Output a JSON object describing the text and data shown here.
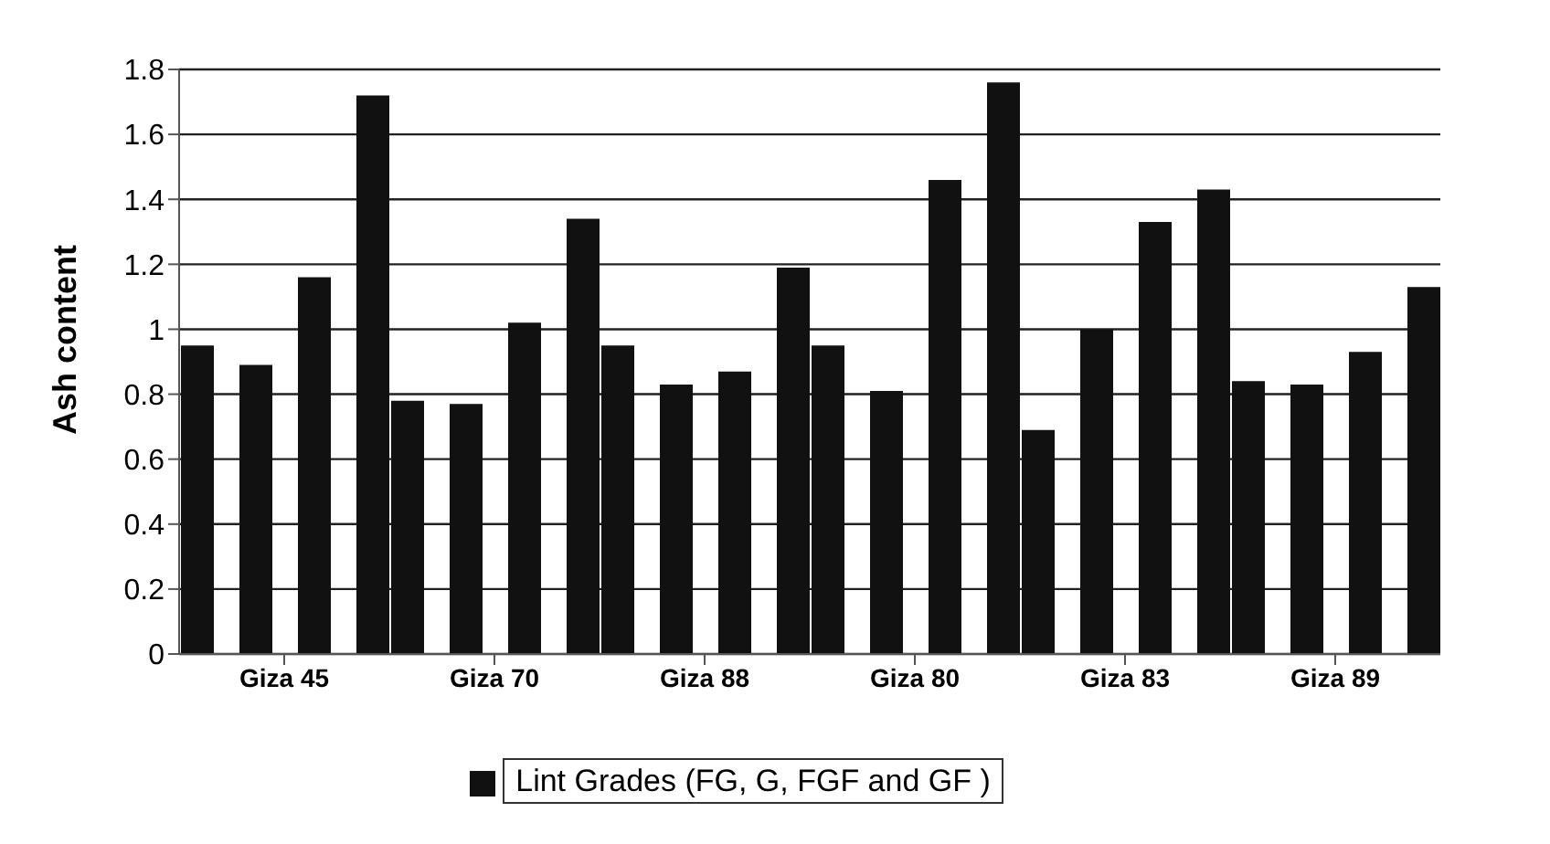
{
  "chart_data": {
    "type": "bar",
    "ylabel": "Ash content",
    "categories": [
      "Giza 45",
      "Giza 70",
      "Giza 88",
      "Giza 80",
      "Giza 83",
      "Giza 89"
    ],
    "series": [
      {
        "name": "Lint Grades (FG, G, FGF and GF )",
        "color": "#111111",
        "values": [
          0.95,
          0.78,
          0.95,
          0.95,
          0.69,
          0.84
        ]
      },
      {
        "color": "#111111",
        "values": [
          0.89,
          0.77,
          0.83,
          0.81,
          1.0,
          0.83
        ]
      },
      {
        "color": "#111111",
        "values": [
          1.16,
          1.02,
          0.87,
          1.46,
          1.33,
          0.93
        ]
      },
      {
        "color": "#111111",
        "values": [
          1.72,
          1.34,
          1.19,
          1.76,
          1.43,
          1.13
        ]
      }
    ],
    "ylim": [
      0,
      1.8
    ],
    "yticks": [
      0,
      0.2,
      0.4,
      0.6,
      0.8,
      1,
      1.2,
      1.4,
      1.6,
      1.8
    ],
    "grid": "y",
    "legend": "bottom"
  }
}
